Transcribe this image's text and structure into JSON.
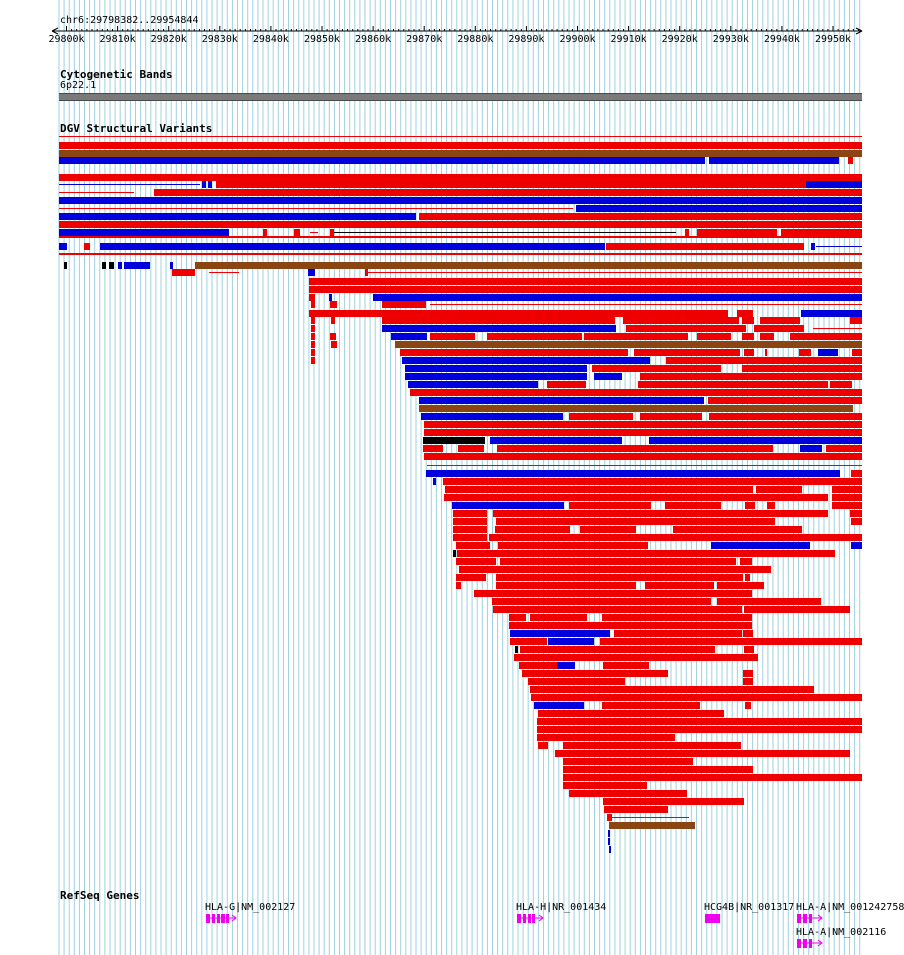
{
  "position_label": "chr6:29798382..29954844",
  "ruler": {
    "ticks": [
      "29800k",
      "29810k",
      "29820k",
      "29830k",
      "29840k",
      "29850k",
      "29860k",
      "29870k",
      "29880k",
      "29890k",
      "29900k",
      "29910k",
      "29920k",
      "29930k",
      "29940k",
      "29950k"
    ]
  },
  "tracks": {
    "cytobands": {
      "title": "Cytogenetic Bands",
      "band_name": "6p22.1"
    },
    "dgv": {
      "title": "DGV Structural Variants"
    },
    "refseq": {
      "title": "RefSeq Genes",
      "genes": [
        {
          "label": "HLA-G|NM_002127"
        },
        {
          "label": "HLA-H|NR_001434"
        },
        {
          "label": "HCG4B|NR_001317"
        },
        {
          "label": "HLA-A|NM_001242758"
        },
        {
          "label": "HLA-A|NM_002116"
        }
      ]
    }
  },
  "colors": {
    "loss": "#ee0000",
    "gain": "#0000dd",
    "inversion": "#8b4513",
    "complex": "#000000",
    "gene": "#ee00ee",
    "grid": "#9fd1df"
  }
}
